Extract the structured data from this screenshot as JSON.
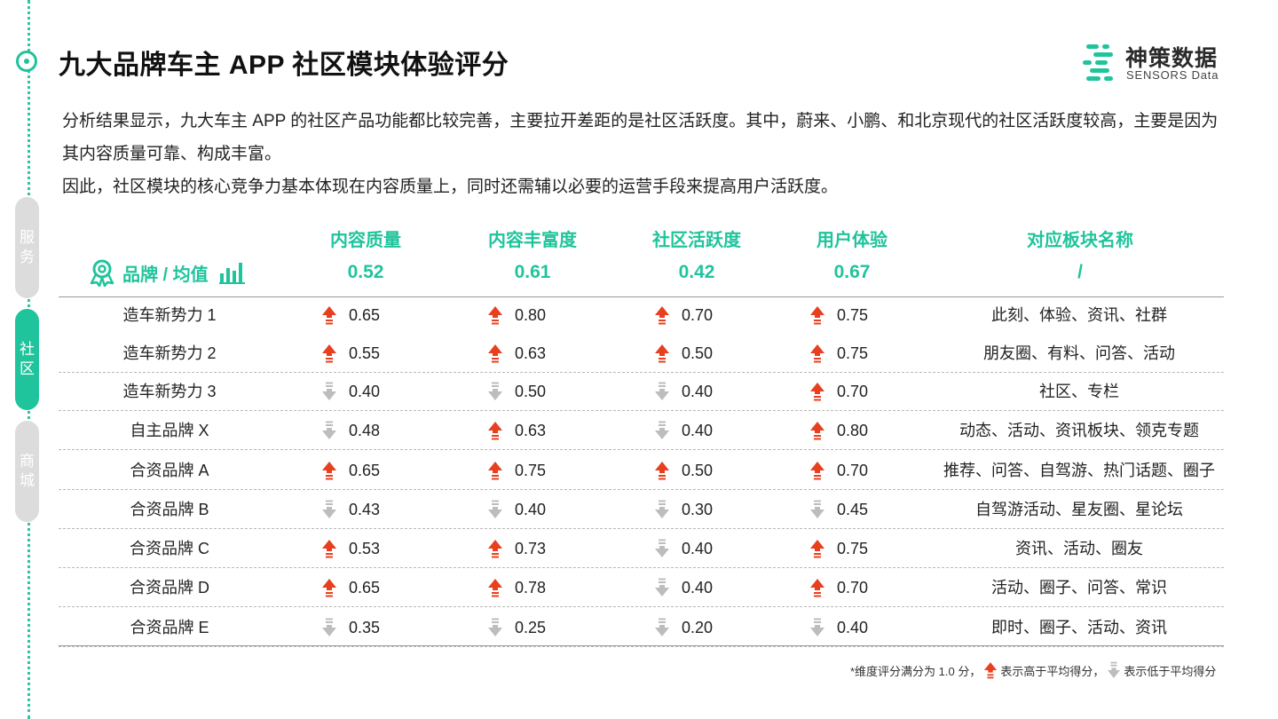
{
  "title": "九大品牌车主 APP 社区模块体验评分",
  "logo": {
    "cn": "神策数据",
    "en": "SENSORS Data"
  },
  "side_tabs": [
    "服务",
    "社区",
    "商城"
  ],
  "active_tab": "社区",
  "paragraph": {
    "line1": "分析结果显示，九大车主 APP 的社区产品功能都比较完善，主要拉开差距的是社区活跃度。其中，蔚来、小鹏、和北京现代的社区活跃度较高，主要是因为其内容质量可靠、构成丰富。",
    "line2": "因此，社区模块的核心竞争力基本体现在内容质量上，同时还需辅以必要的运营手段来提高用户活跃度。"
  },
  "table": {
    "brand_header": "品牌 / 均值",
    "columns": [
      "内容质量",
      "内容丰富度",
      "社区活跃度",
      "用户体验",
      "对应板块名称"
    ],
    "averages": [
      "0.52",
      "0.61",
      "0.42",
      "0.67",
      "/"
    ],
    "rows": [
      {
        "brand": "造车新势力 1",
        "scores": [
          "0.65",
          "0.80",
          "0.70",
          "0.75"
        ],
        "up": [
          true,
          true,
          true,
          true
        ],
        "modules": "此刻、体验、资讯、社群"
      },
      {
        "brand": "造车新势力 2",
        "scores": [
          "0.55",
          "0.63",
          "0.50",
          "0.75"
        ],
        "up": [
          true,
          true,
          true,
          true
        ],
        "modules": "朋友圈、有料、问答、活动"
      },
      {
        "brand": "造车新势力 3",
        "scores": [
          "0.40",
          "0.50",
          "0.40",
          "0.70"
        ],
        "up": [
          false,
          false,
          false,
          true
        ],
        "modules": "社区、专栏"
      },
      {
        "brand": "自主品牌 X",
        "scores": [
          "0.48",
          "0.63",
          "0.40",
          "0.80"
        ],
        "up": [
          false,
          true,
          false,
          true
        ],
        "modules": "动态、活动、资讯板块、领克专题"
      },
      {
        "brand": "合资品牌 A",
        "scores": [
          "0.65",
          "0.75",
          "0.50",
          "0.70"
        ],
        "up": [
          true,
          true,
          true,
          true
        ],
        "modules": "推荐、问答、自驾游、热门话题、圈子"
      },
      {
        "brand": "合资品牌 B",
        "scores": [
          "0.43",
          "0.40",
          "0.30",
          "0.45"
        ],
        "up": [
          false,
          false,
          false,
          false
        ],
        "modules": "自驾游活动、星友圈、星论坛"
      },
      {
        "brand": "合资品牌 C",
        "scores": [
          "0.53",
          "0.73",
          "0.40",
          "0.75"
        ],
        "up": [
          true,
          true,
          false,
          true
        ],
        "modules": "资讯、活动、圈友"
      },
      {
        "brand": "合资品牌 D",
        "scores": [
          "0.65",
          "0.78",
          "0.40",
          "0.70"
        ],
        "up": [
          true,
          true,
          false,
          true
        ],
        "modules": "活动、圈子、问答、常识"
      },
      {
        "brand": "合资品牌 E",
        "scores": [
          "0.35",
          "0.25",
          "0.20",
          "0.40"
        ],
        "up": [
          false,
          false,
          false,
          false
        ],
        "modules": "即时、圈子、活动、资讯"
      }
    ]
  },
  "footnote": {
    "part1": "*维度评分满分为 1.0 分，",
    "part2": "表示高于平均得分，",
    "part3": "表示低于平均得分"
  },
  "colors": {
    "accent": "#1fc49c",
    "up": "#e8401f",
    "down": "#bdbdbd"
  },
  "icons": {
    "up": "arrow-up-icon",
    "down": "arrow-down-icon",
    "brand": "award-badge-icon",
    "avg": "bar-chart-icon"
  }
}
